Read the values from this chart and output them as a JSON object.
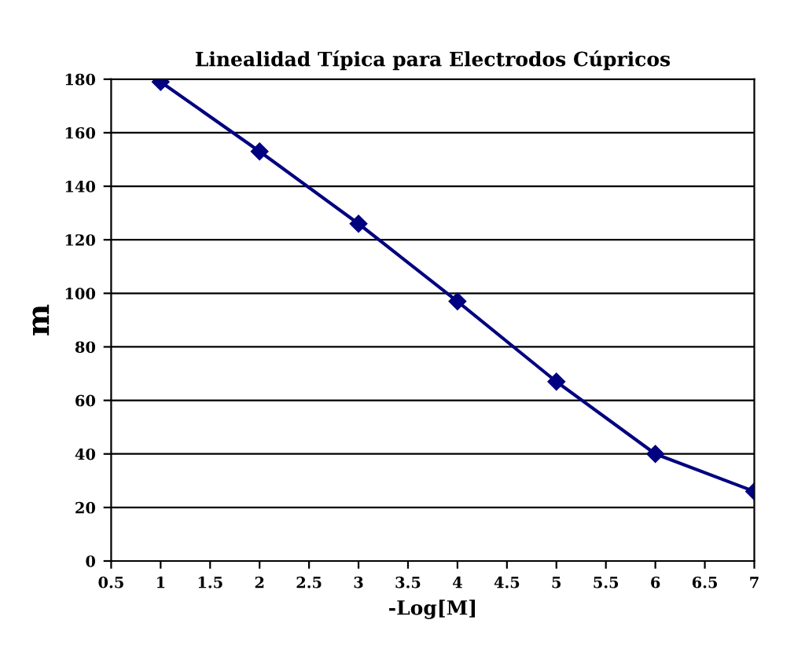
{
  "chart_data": {
    "type": "line",
    "title": "Linealidad Típica para Electrodos Cúpricos",
    "xlabel": "-Log[M]",
    "ylabel": "m",
    "x": [
      1,
      2,
      3,
      4,
      5,
      6,
      7
    ],
    "series": [
      {
        "color": "#000080",
        "values": [
          179,
          153,
          126,
          97,
          67,
          40,
          26
        ]
      }
    ],
    "xlim": [
      0.5,
      7
    ],
    "xticks": [
      0.5,
      1,
      1.5,
      2,
      2.5,
      3,
      3.5,
      4,
      4.5,
      5,
      5.5,
      6,
      6.5,
      7
    ],
    "ylim": [
      0,
      180
    ],
    "yticks": [
      0,
      20,
      40,
      60,
      80,
      100,
      120,
      140,
      160,
      180
    ],
    "grid": "y",
    "marker": "diamond",
    "line_style": "solid"
  }
}
